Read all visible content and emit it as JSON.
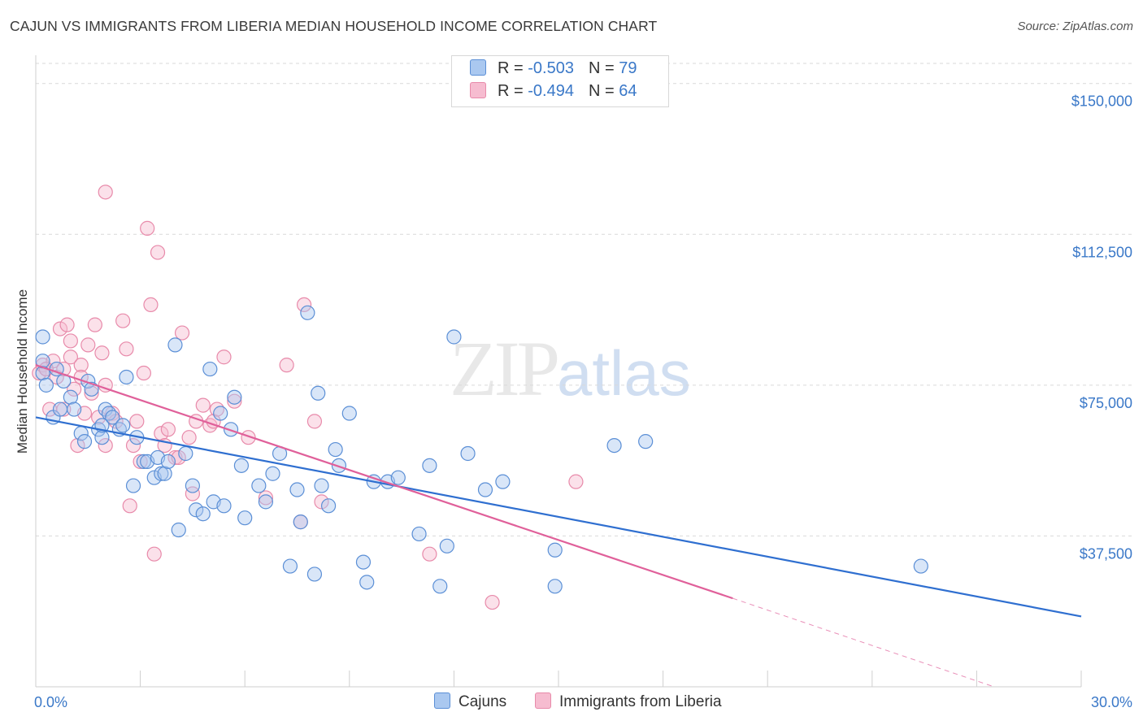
{
  "header": {
    "title": "CAJUN VS IMMIGRANTS FROM LIBERIA MEDIAN HOUSEHOLD INCOME CORRELATION CHART",
    "source": "Source: ZipAtlas.com"
  },
  "watermark": {
    "zip": "ZIP",
    "atlas": "atlas"
  },
  "legend": {
    "rows": [
      {
        "r_label": "R = ",
        "r_value": "-0.503",
        "n_label": "N = ",
        "n_value": "79"
      },
      {
        "r_label": "R = ",
        "r_value": "-0.494",
        "n_label": "N = ",
        "n_value": "64"
      }
    ]
  },
  "bottom_legend": {
    "cajun": "Cajuns",
    "liberia": "Immigrants from Liberia"
  },
  "colors": {
    "cajun_fill": "#aac8f0",
    "cajun_stroke": "#5b8fd6",
    "cajun_line": "#2f6fd0",
    "liberia_fill": "#f6bcd0",
    "liberia_stroke": "#e88aaa",
    "liberia_line": "#e0609a",
    "grid": "#d9d9d9",
    "label_blue": "#3a78c8"
  },
  "chart_data": {
    "type": "scatter",
    "title": "CAJUN VS IMMIGRANTS FROM LIBERIA MEDIAN HOUSEHOLD INCOME CORRELATION CHART",
    "xlabel": "",
    "ylabel": "Median Household Income",
    "x_tick_labels": [
      "0.0%",
      "30.0%"
    ],
    "y_tick_labels": [
      "$150,000",
      "$112,500",
      "$75,000",
      "$37,500"
    ],
    "xlim": [
      0,
      30
    ],
    "ylim": [
      0,
      155000
    ],
    "y_ticks": [
      150000,
      112500,
      75000,
      37500
    ],
    "grid": true,
    "series": [
      {
        "name": "Cajuns",
        "r": -0.503,
        "n": 79,
        "trend": {
          "x": [
            0,
            30
          ],
          "y": [
            67000,
            17500
          ]
        },
        "points": [
          [
            0.2,
            87000
          ],
          [
            0.2,
            78000
          ],
          [
            0.2,
            81000
          ],
          [
            0.3,
            75000
          ],
          [
            0.5,
            67000
          ],
          [
            0.6,
            79000
          ],
          [
            0.7,
            69000
          ],
          [
            0.8,
            76000
          ],
          [
            1.0,
            72000
          ],
          [
            1.1,
            69000
          ],
          [
            1.3,
            63000
          ],
          [
            1.4,
            61000
          ],
          [
            1.5,
            76000
          ],
          [
            1.6,
            74000
          ],
          [
            1.8,
            64000
          ],
          [
            1.9,
            62000
          ],
          [
            2.0,
            69000
          ],
          [
            2.1,
            68000
          ],
          [
            2.2,
            67000
          ],
          [
            2.4,
            64000
          ],
          [
            2.5,
            65000
          ],
          [
            2.6,
            77000
          ],
          [
            2.8,
            50000
          ],
          [
            2.9,
            62000
          ],
          [
            3.1,
            56000
          ],
          [
            3.2,
            56000
          ],
          [
            3.4,
            52000
          ],
          [
            3.5,
            57000
          ],
          [
            3.6,
            53000
          ],
          [
            3.7,
            53000
          ],
          [
            3.8,
            56000
          ],
          [
            4.0,
            85000
          ],
          [
            4.1,
            39000
          ],
          [
            4.3,
            58000
          ],
          [
            4.5,
            50000
          ],
          [
            4.6,
            44000
          ],
          [
            4.8,
            43000
          ],
          [
            5.0,
            79000
          ],
          [
            5.1,
            46000
          ],
          [
            5.3,
            68000
          ],
          [
            5.4,
            45000
          ],
          [
            5.6,
            64000
          ],
          [
            5.7,
            72000
          ],
          [
            5.9,
            55000
          ],
          [
            6.0,
            42000
          ],
          [
            6.4,
            50000
          ],
          [
            6.6,
            46000
          ],
          [
            6.8,
            53000
          ],
          [
            7.0,
            58000
          ],
          [
            7.3,
            30000
          ],
          [
            7.5,
            49000
          ],
          [
            7.6,
            41000
          ],
          [
            7.8,
            93000
          ],
          [
            8.0,
            28000
          ],
          [
            8.1,
            73000
          ],
          [
            8.2,
            50000
          ],
          [
            8.4,
            45000
          ],
          [
            8.6,
            59000
          ],
          [
            8.7,
            55000
          ],
          [
            9.0,
            68000
          ],
          [
            9.4,
            31000
          ],
          [
            9.5,
            26000
          ],
          [
            9.7,
            51000
          ],
          [
            10.1,
            51000
          ],
          [
            10.4,
            52000
          ],
          [
            11.0,
            38000
          ],
          [
            11.3,
            55000
          ],
          [
            11.6,
            25000
          ],
          [
            11.8,
            35000
          ],
          [
            12.4,
            58000
          ],
          [
            12.0,
            87000
          ],
          [
            12.9,
            49000
          ],
          [
            13.4,
            51000
          ],
          [
            14.9,
            34000
          ],
          [
            14.9,
            25000
          ],
          [
            16.6,
            60000
          ],
          [
            17.5,
            61000
          ],
          [
            25.4,
            30000
          ],
          [
            1.9,
            65000
          ]
        ]
      },
      {
        "name": "Immigrants from Liberia",
        "r": -0.494,
        "n": 64,
        "trend": {
          "x": [
            0,
            20
          ],
          "y": [
            80000,
            22000
          ]
        },
        "trend_dashed": {
          "x": [
            20,
            27.5
          ],
          "y": [
            22000,
            0
          ]
        },
        "points": [
          [
            0.1,
            78000
          ],
          [
            0.2,
            80000
          ],
          [
            0.3,
            79000
          ],
          [
            0.4,
            69000
          ],
          [
            0.5,
            81000
          ],
          [
            0.6,
            77000
          ],
          [
            0.7,
            89000
          ],
          [
            0.8,
            79000
          ],
          [
            0.9,
            90000
          ],
          [
            1.0,
            86000
          ],
          [
            1.0,
            82000
          ],
          [
            1.1,
            74000
          ],
          [
            1.2,
            60000
          ],
          [
            1.3,
            80000
          ],
          [
            1.4,
            68000
          ],
          [
            1.5,
            85000
          ],
          [
            1.6,
            73000
          ],
          [
            1.7,
            90000
          ],
          [
            1.8,
            67000
          ],
          [
            1.9,
            83000
          ],
          [
            2.0,
            75000
          ],
          [
            2.0,
            60000
          ],
          [
            2.2,
            68000
          ],
          [
            2.3,
            66000
          ],
          [
            2.5,
            91000
          ],
          [
            2.6,
            84000
          ],
          [
            2.7,
            45000
          ],
          [
            2.8,
            60000
          ],
          [
            2.9,
            66000
          ],
          [
            3.0,
            56000
          ],
          [
            3.1,
            78000
          ],
          [
            3.2,
            114000
          ],
          [
            3.3,
            95000
          ],
          [
            3.4,
            33000
          ],
          [
            3.5,
            108000
          ],
          [
            3.6,
            63000
          ],
          [
            3.7,
            60000
          ],
          [
            3.8,
            64000
          ],
          [
            4.0,
            57000
          ],
          [
            4.1,
            57000
          ],
          [
            4.2,
            88000
          ],
          [
            4.4,
            62000
          ],
          [
            4.5,
            48000
          ],
          [
            4.6,
            66000
          ],
          [
            4.8,
            70000
          ],
          [
            5.0,
            65000
          ],
          [
            5.1,
            66000
          ],
          [
            5.2,
            69000
          ],
          [
            5.4,
            82000
          ],
          [
            5.7,
            71000
          ],
          [
            6.1,
            62000
          ],
          [
            6.6,
            47000
          ],
          [
            7.2,
            80000
          ],
          [
            7.6,
            41000
          ],
          [
            7.7,
            95000
          ],
          [
            8.0,
            66000
          ],
          [
            8.2,
            46000
          ],
          [
            11.3,
            33000
          ],
          [
            13.1,
            21000
          ],
          [
            15.5,
            51000
          ],
          [
            2.0,
            123000
          ],
          [
            0.3,
            79000
          ],
          [
            1.3,
            77000
          ],
          [
            0.8,
            69000
          ]
        ]
      }
    ]
  }
}
